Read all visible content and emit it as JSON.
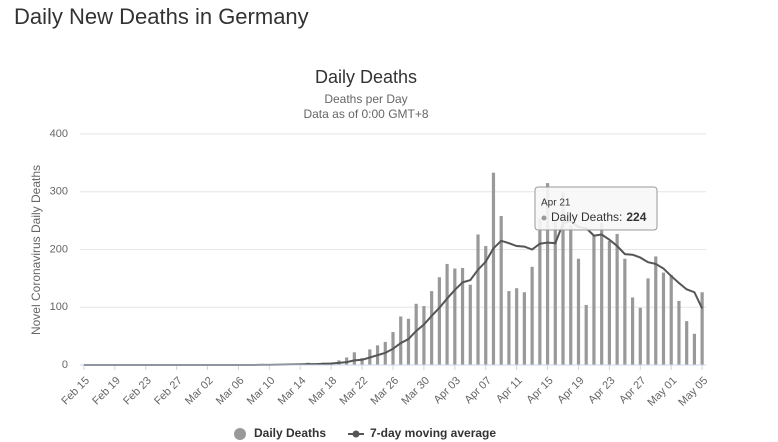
{
  "page_title": "Daily New Deaths in Germany",
  "chart_data": {
    "type": "bar",
    "title": "Daily Deaths",
    "subtitle": [
      "Deaths per Day",
      "Data as of 0:00 GMT+8"
    ],
    "y_label": "Novel Coronavirus Daily Deaths",
    "categories": [
      "Feb 15",
      null,
      null,
      null,
      "Feb 19",
      null,
      null,
      null,
      "Feb 23",
      null,
      null,
      null,
      "Feb 27",
      null,
      null,
      null,
      "Mar 02",
      null,
      null,
      null,
      "Mar 06",
      null,
      null,
      null,
      "Mar 10",
      null,
      null,
      null,
      "Mar 14",
      null,
      null,
      null,
      "Mar 18",
      null,
      null,
      null,
      "Mar 22",
      null,
      null,
      null,
      "Mar 26",
      null,
      null,
      null,
      "Mar 30",
      null,
      null,
      null,
      "Apr 03",
      null,
      null,
      null,
      "Apr 07",
      null,
      null,
      null,
      "Apr 11",
      null,
      null,
      null,
      "Apr 15",
      null,
      null,
      null,
      "Apr 19",
      null,
      null,
      null,
      "Apr 23",
      null,
      null,
      null,
      "Apr 27",
      null,
      null,
      null,
      "May 01",
      null,
      null,
      null,
      "May 05"
    ],
    "series": [
      {
        "name": "Daily Deaths",
        "type": "bar",
        "color": "#999999",
        "values": [
          0,
          0,
          0,
          0,
          0,
          0,
          0,
          0,
          0,
          0,
          0,
          0,
          0,
          0,
          0,
          0,
          0,
          0,
          0,
          0,
          0,
          0,
          0,
          2,
          0,
          1,
          1,
          2,
          1,
          4,
          2,
          4,
          4,
          8,
          13,
          22,
          12,
          27,
          34,
          40,
          57,
          84,
          80,
          106,
          102,
          128,
          152,
          175,
          167,
          168,
          139,
          226,
          206,
          333,
          258,
          128,
          133,
          126,
          170,
          254,
          315,
          248,
          299,
          242,
          184,
          104,
          224,
          246,
          215,
          227,
          184,
          117,
          99,
          150,
          188,
          160,
          156,
          111,
          76,
          54,
          126
        ]
      },
      {
        "name": "7-day moving average",
        "type": "line",
        "color": "#555555",
        "values": [
          0,
          0,
          0,
          0,
          0,
          0,
          0,
          0,
          0,
          0,
          0,
          0,
          0,
          0,
          0,
          0,
          0,
          0,
          0,
          0,
          0,
          0,
          0,
          0.3,
          0.3,
          0.4,
          0.6,
          0.9,
          1.1,
          1.6,
          1.6,
          2.1,
          2.6,
          3.6,
          5,
          8,
          9,
          13,
          17,
          21,
          28,
          38,
          45,
          59,
          70,
          85,
          99,
          115,
          130,
          143,
          147,
          165,
          179,
          202,
          215,
          211,
          206,
          205,
          200,
          210,
          212,
          211,
          245,
          249,
          239,
          237,
          224,
          226,
          217,
          206,
          192,
          191,
          186,
          178,
          175,
          167,
          154,
          142,
          131,
          126,
          98
        ]
      }
    ],
    "ylim": [
      0,
      400
    ],
    "yticks": [
      0,
      100,
      200,
      300,
      400
    ],
    "grid": true,
    "tooltip": {
      "title": "Apr 21",
      "label": "Daily Deaths:",
      "value": 224,
      "index": 66
    }
  }
}
